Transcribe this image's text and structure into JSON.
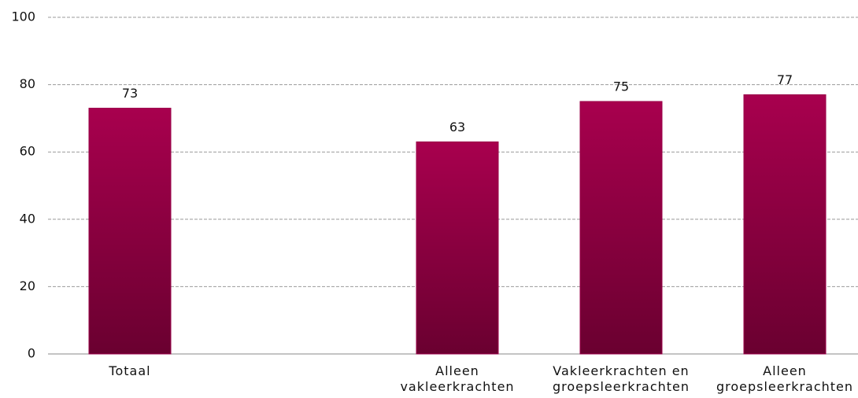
{
  "chart_data": {
    "type": "bar",
    "categories": [
      "Totaal",
      null,
      "Alleen vakleerkrachten",
      "Vakleerkrachten en groepsleerkrachten",
      "Alleen groepsleerkrachten"
    ],
    "values": [
      73,
      null,
      63,
      75,
      77
    ],
    "color": "#9a0048",
    "ylim": [
      0,
      100
    ],
    "yticks": [
      0,
      20,
      40,
      60,
      80,
      100
    ],
    "grid": true
  }
}
